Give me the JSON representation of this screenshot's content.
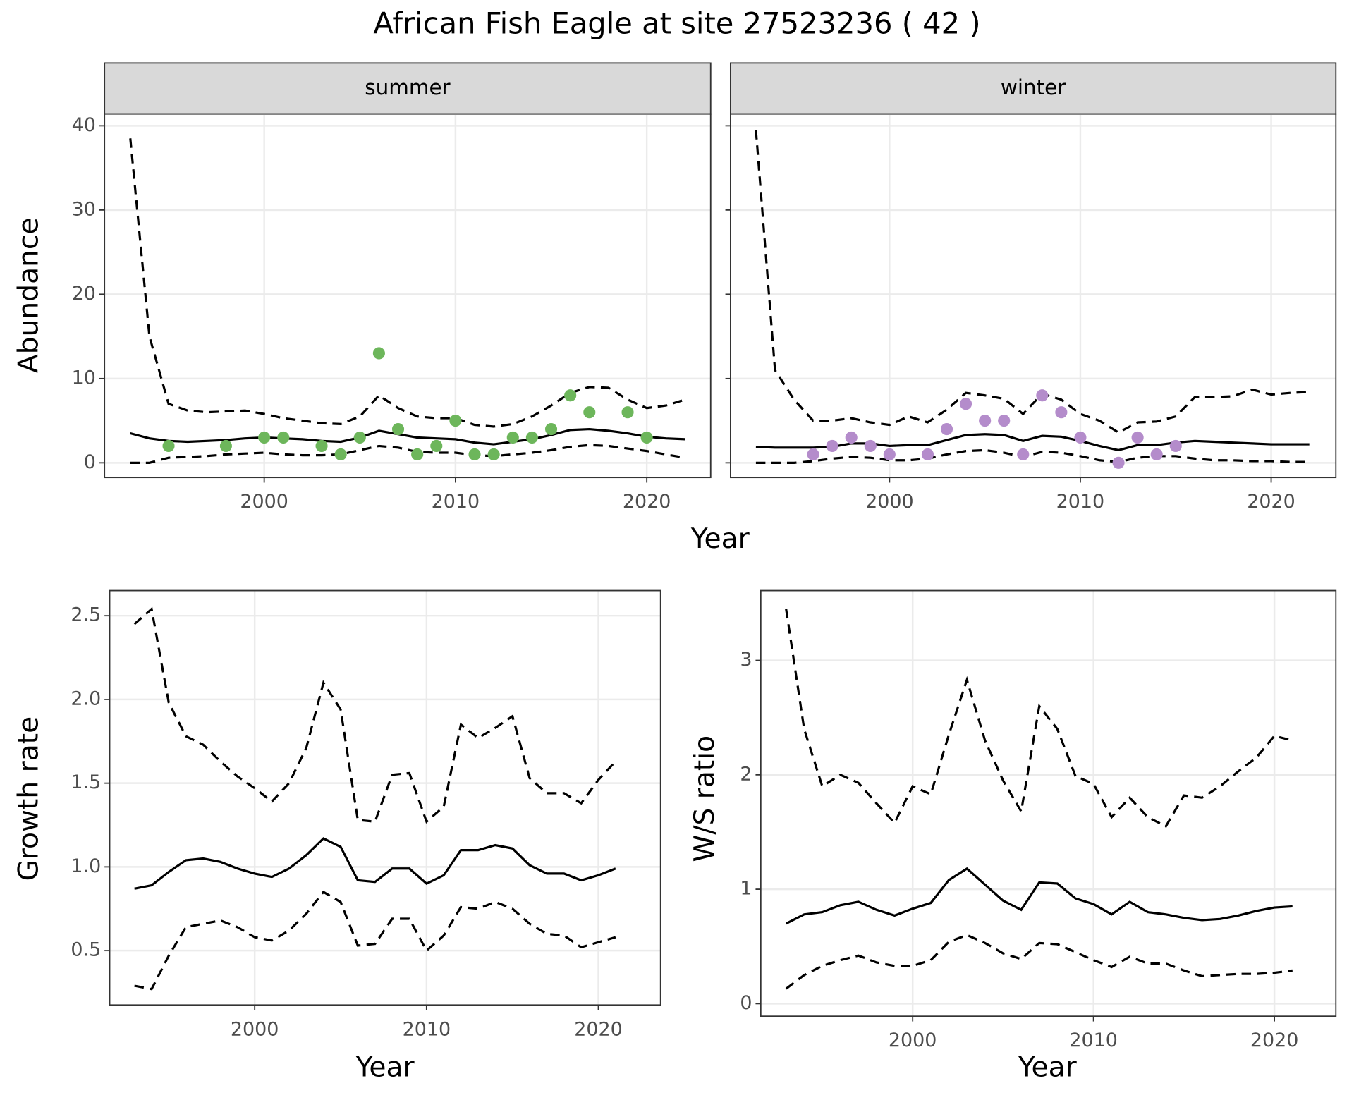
{
  "title": "African Fish Eagle at site 27523236 ( 42 )",
  "chart_data": [
    {
      "type": "line",
      "facet": "summer",
      "ylabel": "Abundance",
      "xlabel": "Year",
      "x": [
        1993,
        1994,
        1995,
        1996,
        1997,
        1998,
        1999,
        2000,
        2001,
        2002,
        2003,
        2004,
        2005,
        2006,
        2007,
        2008,
        2009,
        2010,
        2011,
        2012,
        2013,
        2014,
        2015,
        2016,
        2017,
        2018,
        2019,
        2020,
        2021,
        2022
      ],
      "xlim": [
        1991.65,
        2023.34
      ],
      "xticks": [
        2000,
        2010,
        2020
      ],
      "ylim": [
        -1.74,
        41.4
      ],
      "yticks": [
        0,
        10,
        20,
        30,
        40
      ],
      "show_ytick_labels": true,
      "grid": true,
      "series": [
        {
          "style": "solid",
          "color": "#000000",
          "values": [
            3.5,
            2.9,
            2.6,
            2.5,
            2.6,
            2.7,
            2.9,
            3.0,
            2.9,
            2.8,
            2.6,
            2.5,
            3.0,
            3.8,
            3.4,
            3.0,
            2.9,
            2.8,
            2.4,
            2.2,
            2.5,
            2.8,
            3.3,
            3.9,
            4.0,
            3.8,
            3.5,
            3.1,
            2.9,
            2.8
          ]
        },
        {
          "style": "dashed",
          "color": "#000000",
          "values": [
            38.5,
            15,
            7,
            6.2,
            6,
            6.1,
            6.2,
            5.8,
            5.3,
            5,
            4.7,
            4.6,
            5.5,
            8.0,
            6.5,
            5.5,
            5.3,
            5.3,
            4.5,
            4.3,
            4.6,
            5.5,
            6.8,
            8.3,
            9,
            8.9,
            7.5,
            6.5,
            6.8,
            7.5
          ]
        },
        {
          "style": "dashed",
          "color": "#000000",
          "values": [
            0,
            0,
            0.6,
            0.7,
            0.8,
            1.0,
            1.1,
            1.2,
            1.0,
            0.9,
            0.9,
            1.0,
            1.5,
            2.0,
            1.8,
            1.3,
            1.2,
            1.2,
            0.9,
            0.8,
            1.0,
            1.2,
            1.5,
            1.9,
            2.1,
            2.0,
            1.7,
            1.4,
            1.0,
            0.6
          ]
        },
        {
          "style": "point",
          "color": "#6db65b",
          "x": [
            1995,
            1998,
            2000,
            2001,
            2003,
            2004,
            2005,
            2006,
            2007,
            2008,
            2009,
            2010,
            2011,
            2012,
            2013,
            2014,
            2015,
            2016,
            2017,
            2019,
            2020
          ],
          "values": [
            2,
            2,
            3,
            3,
            2,
            1,
            3,
            13,
            4,
            1,
            2,
            5,
            1,
            1,
            3,
            3,
            4,
            8,
            6,
            6,
            3
          ]
        }
      ]
    },
    {
      "type": "line",
      "facet": "winter",
      "x": [
        1993,
        1994,
        1995,
        1996,
        1997,
        1998,
        1999,
        2000,
        2001,
        2002,
        2003,
        2004,
        2005,
        2006,
        2007,
        2008,
        2009,
        2010,
        2011,
        2012,
        2013,
        2014,
        2015,
        2016,
        2017,
        2018,
        2019,
        2020,
        2021,
        2022
      ],
      "xlim": [
        1991.67,
        2023.39
      ],
      "xticks": [
        2000,
        2010,
        2020
      ],
      "ylim": [
        -1.74,
        41.4
      ],
      "yticks": [
        0,
        10,
        20,
        30,
        40
      ],
      "show_ytick_labels": false,
      "grid": true,
      "series": [
        {
          "style": "solid",
          "color": "#000000",
          "values": [
            1.9,
            1.8,
            1.8,
            1.8,
            1.9,
            2.3,
            2.3,
            2.0,
            2.1,
            2.1,
            2.7,
            3.3,
            3.4,
            3.3,
            2.6,
            3.2,
            3.1,
            2.6,
            2.0,
            1.5,
            2.1,
            2.1,
            2.4,
            2.6,
            2.5,
            2.4,
            2.3,
            2.2,
            2.2,
            2.2
          ]
        },
        {
          "style": "dashed",
          "color": "#000000",
          "values": [
            39.5,
            11,
            7.5,
            5,
            5,
            5.3,
            4.8,
            4.5,
            5.5,
            4.8,
            6.3,
            8.3,
            8,
            7.6,
            5.8,
            8.2,
            7.5,
            5.8,
            5,
            3.6,
            4.8,
            4.9,
            5.5,
            7.8,
            7.8,
            7.9,
            8.7,
            8.1,
            8.3,
            8.4
          ]
        },
        {
          "style": "dashed",
          "color": "#000000",
          "values": [
            0,
            0,
            0,
            0.2,
            0.5,
            0.7,
            0.6,
            0.3,
            0.3,
            0.5,
            1.0,
            1.4,
            1.5,
            1.2,
            0.7,
            1.3,
            1.2,
            0.8,
            0.3,
            0.1,
            0.6,
            0.8,
            0.8,
            0.5,
            0.3,
            0.3,
            0.2,
            0.2,
            0.1,
            0.1
          ]
        },
        {
          "style": "point",
          "color": "#b48ccb",
          "x": [
            1996,
            1997,
            1998,
            1999,
            2000,
            2002,
            2003,
            2004,
            2005,
            2006,
            2007,
            2008,
            2009,
            2010,
            2012,
            2013,
            2014,
            2015
          ],
          "values": [
            1,
            2,
            3,
            2,
            1,
            1,
            4,
            7,
            5,
            5,
            1,
            8,
            6,
            3,
            0,
            3,
            1,
            2
          ]
        }
      ]
    },
    {
      "type": "line",
      "ylabel": "Growth rate",
      "xlabel": "Year",
      "x": [
        1993,
        1994,
        1995,
        1996,
        1997,
        1998,
        1999,
        2000,
        2001,
        2002,
        2003,
        2004,
        2005,
        2006,
        2007,
        2008,
        2009,
        2010,
        2011,
        2012,
        2013,
        2014,
        2015,
        2016,
        2017,
        2018,
        2019,
        2020,
        2021
      ],
      "xlim": [
        1991.56,
        2023.62
      ],
      "xticks": [
        2000,
        2010,
        2020
      ],
      "ylim": [
        0.175,
        2.65
      ],
      "yticks": [
        0.5,
        {
          "value": 1,
          "label": "1.0"
        },
        1.5,
        {
          "value": 2,
          "label": "2.0"
        },
        2.5
      ],
      "show_ytick_labels": true,
      "grid": true,
      "series": [
        {
          "style": "solid",
          "color": "#000000",
          "values": [
            0.87,
            0.89,
            0.97,
            1.04,
            1.05,
            1.03,
            0.99,
            0.96,
            0.94,
            0.99,
            1.07,
            1.17,
            1.12,
            0.92,
            0.91,
            0.99,
            0.99,
            0.9,
            0.95,
            1.1,
            1.1,
            1.13,
            1.11,
            1.01,
            0.96,
            0.96,
            0.92,
            0.95,
            0.99
          ]
        },
        {
          "style": "dashed",
          "color": "#000000",
          "values": [
            2.45,
            2.54,
            1.98,
            1.78,
            1.73,
            1.63,
            1.54,
            1.47,
            1.39,
            1.5,
            1.71,
            2.1,
            1.94,
            1.28,
            1.27,
            1.55,
            1.56,
            1.27,
            1.36,
            1.85,
            1.77,
            1.83,
            1.9,
            1.53,
            1.44,
            1.44,
            1.38,
            1.52,
            1.63
          ]
        },
        {
          "style": "dashed",
          "color": "#000000",
          "values": [
            0.29,
            0.27,
            0.47,
            0.64,
            0.66,
            0.68,
            0.64,
            0.58,
            0.56,
            0.62,
            0.72,
            0.85,
            0.79,
            0.53,
            0.54,
            0.69,
            0.69,
            0.5,
            0.59,
            0.76,
            0.75,
            0.79,
            0.75,
            0.66,
            0.6,
            0.59,
            0.52,
            0.55,
            0.58
          ]
        }
      ]
    },
    {
      "type": "line",
      "ylabel": "W/S ratio",
      "xlabel": "Year",
      "x": [
        1993,
        1994,
        1995,
        1996,
        1997,
        1998,
        1999,
        2000,
        2001,
        2002,
        2003,
        2004,
        2005,
        2006,
        2007,
        2008,
        2009,
        2010,
        2011,
        2012,
        2013,
        2014,
        2015,
        2016,
        2017,
        2018,
        2019,
        2020,
        2021
      ],
      "xlim": [
        1991.6,
        2023.4
      ],
      "xticks": [
        2000,
        2010,
        2020
      ],
      "ylim": [
        -0.11,
        3.61
      ],
      "yticks": [
        0,
        1,
        2,
        3
      ],
      "show_ytick_labels": true,
      "grid": true,
      "series": [
        {
          "style": "solid",
          "color": "#000000",
          "values": [
            0.7,
            0.78,
            0.8,
            0.86,
            0.89,
            0.82,
            0.77,
            0.83,
            0.88,
            1.08,
            1.18,
            1.04,
            0.9,
            0.82,
            1.06,
            1.05,
            0.92,
            0.87,
            0.78,
            0.89,
            0.8,
            0.78,
            0.75,
            0.73,
            0.74,
            0.77,
            0.81,
            0.84,
            0.85
          ]
        },
        {
          "style": "dashed",
          "color": "#000000",
          "values": [
            3.45,
            2.4,
            1.9,
            2.0,
            1.93,
            1.75,
            1.58,
            1.9,
            1.83,
            2.35,
            2.83,
            2.3,
            1.95,
            1.68,
            2.6,
            2.4,
            1.99,
            1.92,
            1.63,
            1.8,
            1.63,
            1.55,
            1.82,
            1.8,
            1.9,
            2.03,
            2.15,
            2.34,
            2.3
          ]
        },
        {
          "style": "dashed",
          "color": "#000000",
          "values": [
            0.13,
            0.25,
            0.33,
            0.38,
            0.42,
            0.36,
            0.33,
            0.33,
            0.38,
            0.54,
            0.6,
            0.53,
            0.44,
            0.39,
            0.53,
            0.52,
            0.45,
            0.38,
            0.32,
            0.41,
            0.35,
            0.35,
            0.29,
            0.24,
            0.25,
            0.26,
            0.26,
            0.27,
            0.29
          ]
        }
      ]
    }
  ]
}
